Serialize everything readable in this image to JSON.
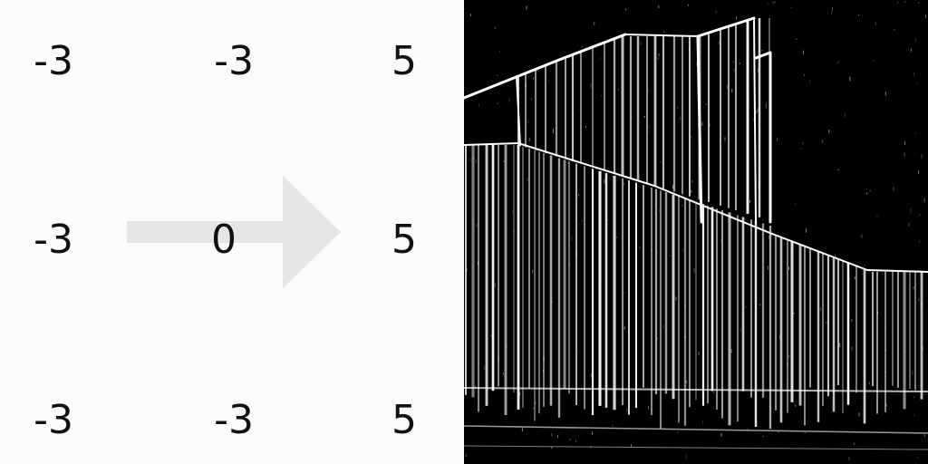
{
  "kernel": {
    "rows": [
      [
        "-3",
        "-3",
        "5"
      ],
      [
        "-3",
        "0",
        "5"
      ],
      [
        "-3",
        "-3",
        "5"
      ]
    ]
  },
  "colors": {
    "background": "#fbfbfb",
    "digits": "#111111",
    "arrow": "#e6e6e6",
    "edge_image_background": "#000000",
    "edge_lines": "#ffffff"
  },
  "icons": {
    "arrow": "right-arrow-icon"
  }
}
